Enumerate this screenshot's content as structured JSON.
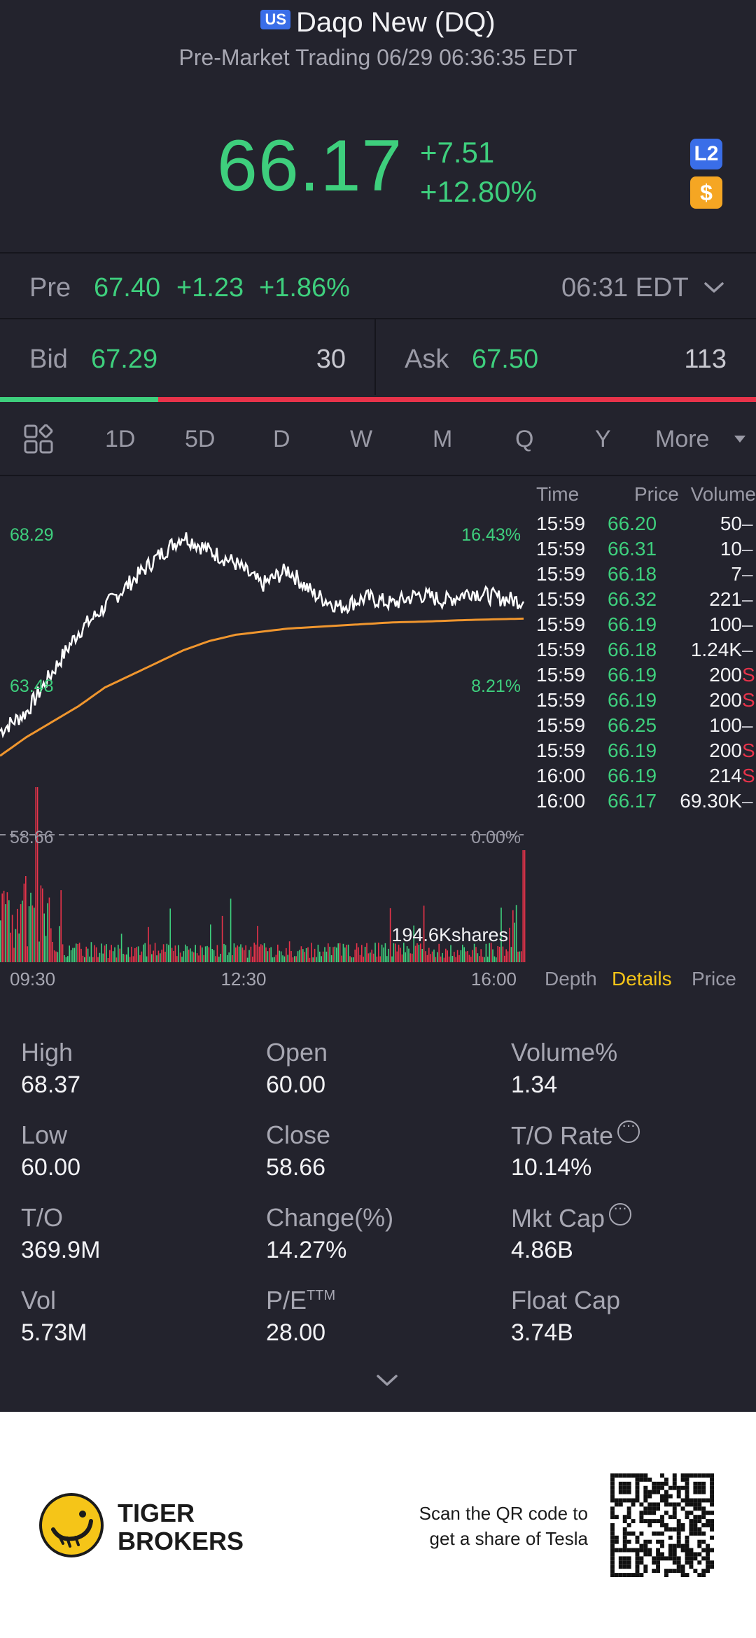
{
  "header": {
    "market_badge": "US",
    "title": "Daqo New (DQ)",
    "subtitle": "Pre-Market Trading 06/29 06:36:35 EDT",
    "price": "66.17",
    "change": "+7.51",
    "change_pct": "+12.80%",
    "l2_badge": "L2",
    "dollar_badge": "$"
  },
  "pre_market": {
    "label": "Pre",
    "price": "67.40",
    "change": "+1.23",
    "change_pct": "+1.86%",
    "time": "06:31 EDT"
  },
  "bid_ask": {
    "bid_label": "Bid",
    "bid_price": "67.29",
    "bid_size": "30",
    "ask_label": "Ask",
    "ask_price": "67.50",
    "ask_size": "113"
  },
  "tabs": [
    "1D",
    "5D",
    "D",
    "W",
    "M",
    "Q",
    "Y",
    "More"
  ],
  "active_tab": "1D",
  "chart": {
    "y_high_label": "68.29",
    "y_mid_label": "63.48",
    "y_base_label": "58.66",
    "pct_high_label": "16.43%",
    "pct_mid_label": "8.21%",
    "pct_base_label": "0.00%",
    "volume_label": "194.6Kshares",
    "x_labels": [
      "09:30",
      "12:30",
      "16:00"
    ],
    "colors": {
      "price": "#ffffff",
      "avg": "#f0962e",
      "up": "#3ecf7d",
      "down": "#e8334a"
    }
  },
  "chart_data": {
    "type": "line",
    "title": "",
    "xlabel": "",
    "ylabel": "",
    "ylim": [
      58.66,
      68.29
    ],
    "x": [
      "09:30",
      "09:50",
      "10:10",
      "10:30",
      "10:50",
      "11:10",
      "11:30",
      "11:50",
      "12:10",
      "12:30",
      "12:50",
      "13:10",
      "13:30",
      "13:50",
      "14:10",
      "14:30",
      "14:50",
      "15:10",
      "15:30",
      "15:50",
      "16:00"
    ],
    "series": [
      {
        "values": [
          62.0,
          62.6,
          63.9,
          65.2,
          66.0,
          66.8,
          67.6,
          68.29,
          67.8,
          67.4,
          66.7,
          67.2,
          66.4,
          66.0,
          66.3,
          66.1,
          66.4,
          66.2,
          66.5,
          66.3,
          66.17
        ]
      },
      {
        "values": [
          61.2,
          61.8,
          62.3,
          62.8,
          63.4,
          63.8,
          64.2,
          64.6,
          64.9,
          65.1,
          65.2,
          65.3,
          65.35,
          65.4,
          65.45,
          65.5,
          65.52,
          65.55,
          65.58,
          65.6,
          65.62
        ]
      }
    ]
  },
  "trades": {
    "headers": [
      "Time",
      "Price",
      "Volume"
    ],
    "rows": [
      {
        "time": "15:59",
        "price": "66.20",
        "volume": "50",
        "flag": ""
      },
      {
        "time": "15:59",
        "price": "66.31",
        "volume": "10",
        "flag": ""
      },
      {
        "time": "15:59",
        "price": "66.18",
        "volume": "7",
        "flag": ""
      },
      {
        "time": "15:59",
        "price": "66.32",
        "volume": "221",
        "flag": ""
      },
      {
        "time": "15:59",
        "price": "66.19",
        "volume": "100",
        "flag": ""
      },
      {
        "time": "15:59",
        "price": "66.18",
        "volume": "1.24K",
        "flag": ""
      },
      {
        "time": "15:59",
        "price": "66.19",
        "volume": "200",
        "flag": "S"
      },
      {
        "time": "15:59",
        "price": "66.19",
        "volume": "200",
        "flag": "S"
      },
      {
        "time": "15:59",
        "price": "66.25",
        "volume": "100",
        "flag": ""
      },
      {
        "time": "15:59",
        "price": "66.19",
        "volume": "200",
        "flag": "S"
      },
      {
        "time": "16:00",
        "price": "66.19",
        "volume": "214",
        "flag": "S"
      },
      {
        "time": "16:00",
        "price": "66.17",
        "volume": "69.30K",
        "flag": ""
      }
    ],
    "tabs": [
      "Depth",
      "Details",
      "Price"
    ],
    "active_tab": "Details"
  },
  "stats": {
    "high_label": "High",
    "high": "68.37",
    "open_label": "Open",
    "open": "60.00",
    "volpct_label": "Volume%",
    "volpct": "1.34",
    "low_label": "Low",
    "low": "60.00",
    "close_label": "Close",
    "close": "58.66",
    "to_rate_label": "T/O Rate",
    "to_rate": "10.14%",
    "to_label": "T/O",
    "to": "369.9M",
    "change_label": "Change(%)",
    "change": "14.27%",
    "mktcap_label": "Mkt Cap",
    "mktcap": "4.86B",
    "vol_label": "Vol",
    "vol": "5.73M",
    "pe_label": "P/E",
    "pe_sup": "TTM",
    "pe": "28.00",
    "floatcap_label": "Float Cap",
    "floatcap": "3.74B"
  },
  "footer": {
    "brand_line1": "TIGER",
    "brand_line2": "BROKERS",
    "promo_line1": "Scan the QR code to",
    "promo_line2": "get a share of Tesla"
  }
}
